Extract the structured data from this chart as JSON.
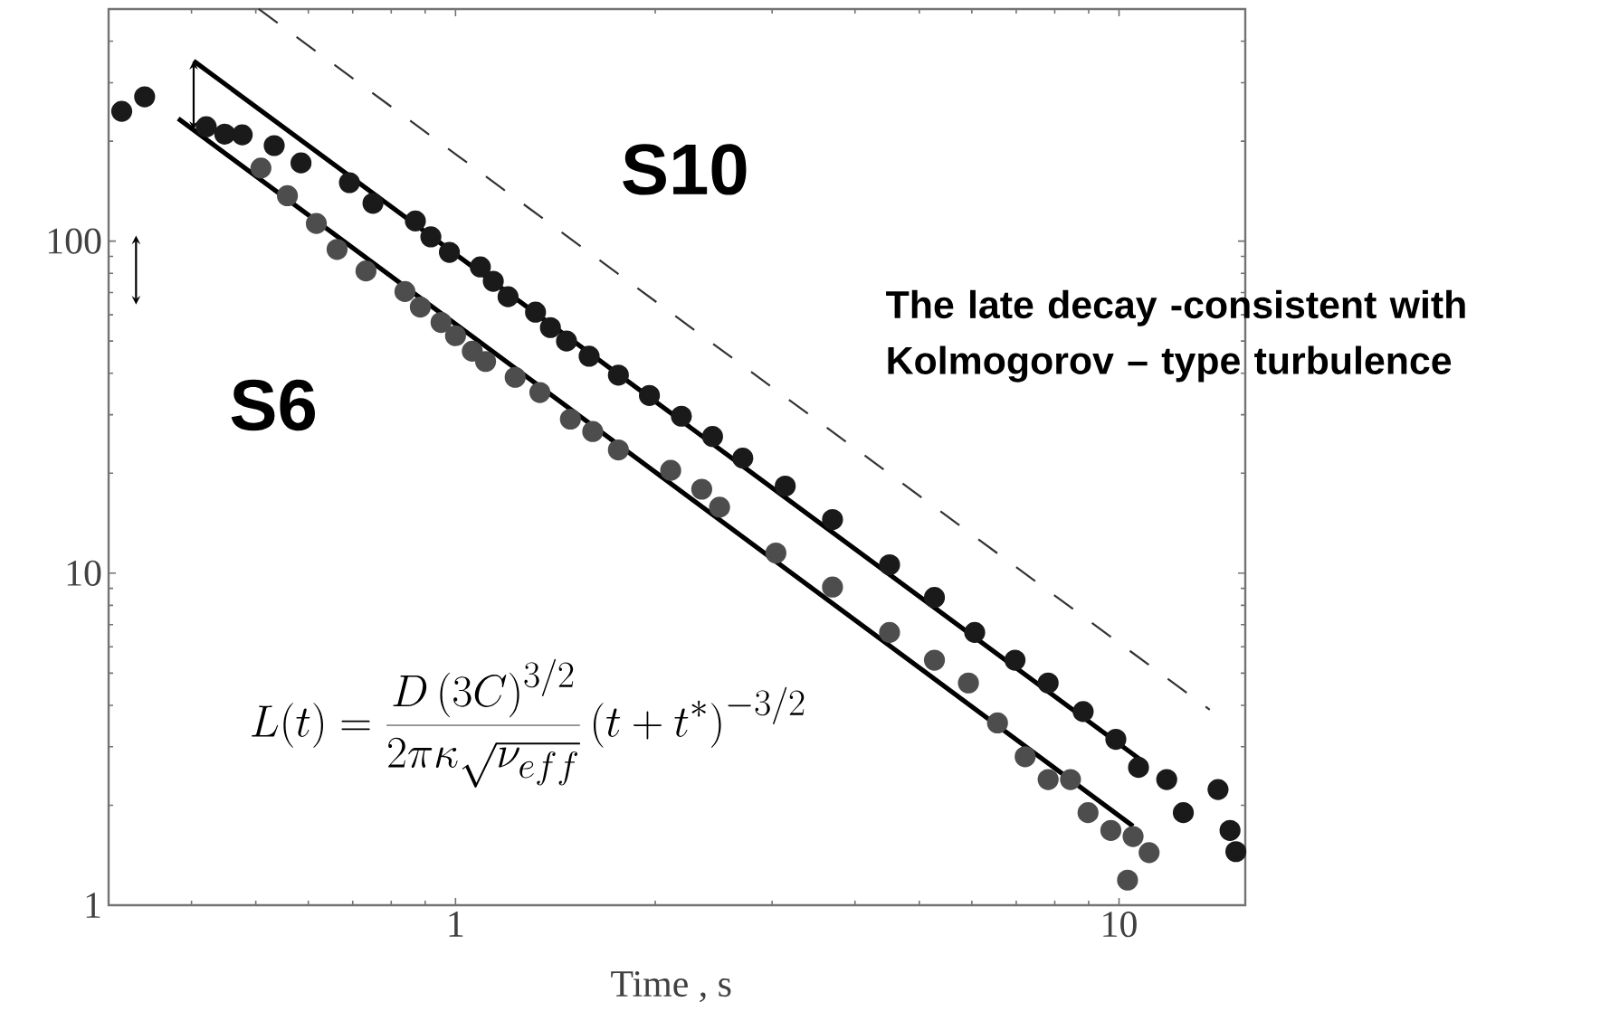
{
  "chart_data": {
    "type": "scatter",
    "xlabel": "Time , s",
    "log": "xy",
    "xlim": [
      0.3,
      15.5
    ],
    "ylim": [
      1,
      500
    ],
    "xticks": [
      1,
      10
    ],
    "yticks": [
      1,
      10,
      100
    ],
    "marker": "circle",
    "annotations": [
      "The late decay -consistent with Kolmogorov – type turbulence",
      "L(t)=\\frac{D\\left(3C\\right)^{3/2}}{2\\pi\\kappa\\sqrt{\\nu_{eff}}}\\left(t+t^{*}\\right)^{-3/2}"
    ],
    "series": [
      {
        "name": "S10",
        "color": "#1a1a1a",
        "x": [
          0.314,
          0.34,
          0.421,
          0.449,
          0.477,
          0.533,
          0.585,
          0.692,
          0.751,
          0.87,
          0.918,
          0.979,
          1.09,
          1.14,
          1.2,
          1.32,
          1.39,
          1.47,
          1.59,
          1.76,
          1.96,
          2.19,
          2.44,
          2.71,
          3.14,
          3.7,
          4.51,
          5.27,
          6.06,
          6.97,
          7.82,
          8.83,
          9.89,
          10.7,
          11.8,
          12.5,
          14.1,
          14.7,
          15.0
        ],
        "values": [
          246,
          272,
          221,
          210,
          209,
          194,
          172,
          150,
          130,
          115,
          103,
          92.5,
          83.6,
          75.7,
          68.0,
          61.1,
          54.9,
          50.0,
          45.0,
          39.5,
          34.3,
          29.7,
          25.8,
          22.2,
          18.3,
          14.5,
          10.6,
          8.45,
          6.63,
          5.47,
          4.67,
          3.83,
          3.16,
          2.6,
          2.39,
          1.9,
          2.23,
          1.68,
          1.45
        ]
      },
      {
        "name": "S6",
        "color": "#4d4d4d",
        "x": [
          0.509,
          0.558,
          0.617,
          0.663,
          0.733,
          0.839,
          0.885,
          0.951,
          1.0,
          1.06,
          1.11,
          1.23,
          1.34,
          1.49,
          1.61,
          1.76,
          2.11,
          2.35,
          2.5,
          3.04,
          3.7,
          4.51,
          5.27,
          5.93,
          6.56,
          7.22,
          7.82,
          8.45,
          8.98,
          9.72,
          10.5,
          11.1,
          10.3
        ],
        "values": [
          166,
          137,
          113,
          94.4,
          81.3,
          70.5,
          63.3,
          56.9,
          51.9,
          46.6,
          43.4,
          38.9,
          35.0,
          29.1,
          26.7,
          23.5,
          20.4,
          17.9,
          15.8,
          11.5,
          9.08,
          6.63,
          5.47,
          4.67,
          3.54,
          2.8,
          2.39,
          2.39,
          1.9,
          1.68,
          1.61,
          1.44,
          1.19
        ]
      },
      {
        "type": "line",
        "color": "#000000",
        "marker": "none",
        "x": [
          0.403,
          11.0
        ],
        "values": [
          349,
          2.66
        ]
      },
      {
        "type": "line",
        "color": "#000000",
        "marker": "none",
        "x": [
          0.382,
          10.5
        ],
        "values": [
          234,
          1.73
        ]
      },
      {
        "type": "line",
        "color": "#333333",
        "marker": "none",
        "line_style": "dashed",
        "x": [
          0.505,
          13.7
        ],
        "values": [
          500,
          3.88
        ]
      }
    ]
  }
}
